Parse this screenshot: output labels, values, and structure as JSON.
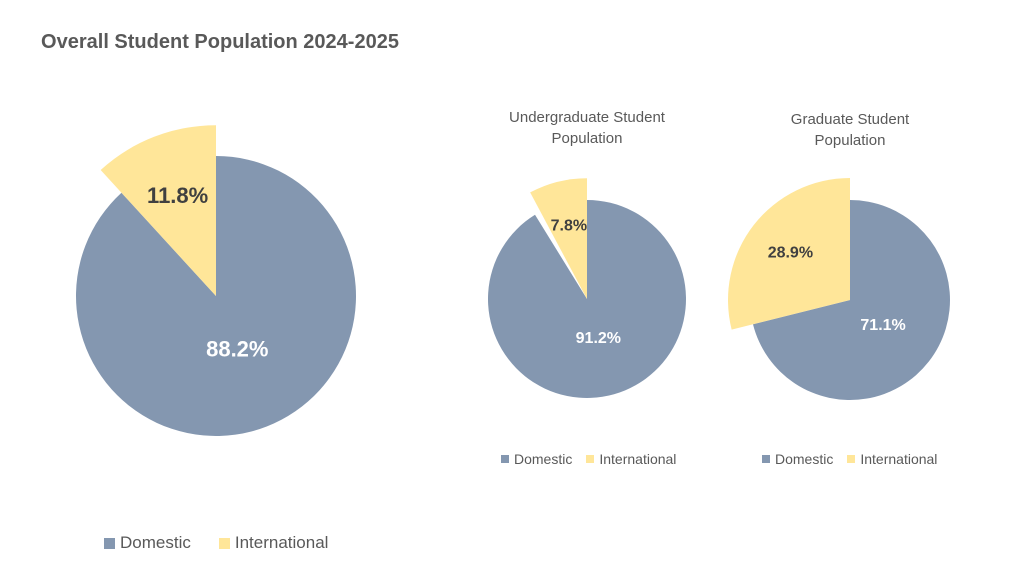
{
  "chart_data": [
    {
      "type": "pie",
      "title": "Overall Student Population 2024-2025",
      "categories": [
        "Domestic",
        "International"
      ],
      "values": [
        88.2,
        11.8
      ],
      "value_labels": [
        "88.2%",
        "11.8%"
      ],
      "colors": [
        "#8497b0",
        "#ffe699"
      ]
    },
    {
      "type": "pie",
      "title": "Undergraduate Student Population",
      "categories": [
        "Domestic",
        "International"
      ],
      "values": [
        91.2,
        7.8
      ],
      "value_labels": [
        "91.2%",
        "7.8%"
      ],
      "colors": [
        "#8497b0",
        "#ffe699"
      ]
    },
    {
      "type": "pie",
      "title": "Graduate Student Population",
      "categories": [
        "Domestic",
        "International"
      ],
      "values": [
        71.1,
        28.9
      ],
      "value_labels": [
        "71.1%",
        "28.9%"
      ],
      "colors": [
        "#8497b0",
        "#ffe699"
      ]
    }
  ]
}
